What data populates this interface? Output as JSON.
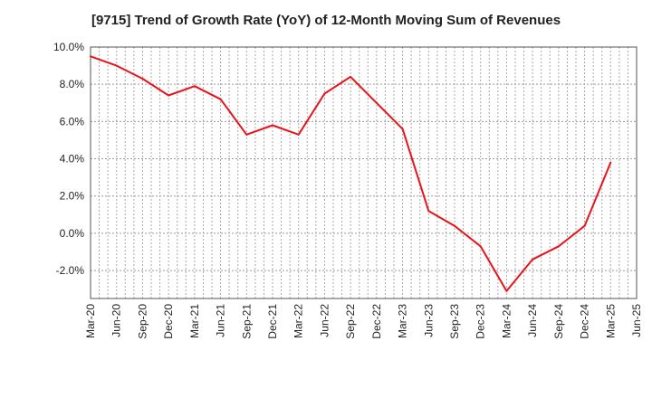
{
  "chart_data": {
    "type": "line",
    "title": "[9715]  Trend of Growth Rate (YoY) of 12-Month Moving Sum of Revenues",
    "xlabel": "",
    "ylabel": "",
    "ylim": [
      -3.5,
      10.0
    ],
    "y_ticks": [
      10.0,
      8.0,
      6.0,
      4.0,
      2.0,
      0.0,
      -2.0
    ],
    "y_tick_labels": [
      "10.0%",
      "8.0%",
      "6.0%",
      "4.0%",
      "2.0%",
      "0.0%",
      "-2.0%"
    ],
    "x_tick_labels": [
      "Mar-20",
      "Jun-20",
      "Sep-20",
      "Dec-20",
      "Mar-21",
      "Jun-21",
      "Sep-21",
      "Dec-21",
      "Mar-22",
      "Jun-22",
      "Sep-22",
      "Dec-22",
      "Mar-23",
      "Jun-23",
      "Sep-23",
      "Dec-23",
      "Mar-24",
      "Jun-24",
      "Sep-24",
      "Dec-24",
      "Mar-25",
      "Jun-25"
    ],
    "grid": true,
    "series": [
      {
        "color": "#e8141b",
        "x": [
          "Mar-20",
          "Jun-20",
          "Sep-20",
          "Dec-20",
          "Mar-21",
          "Jun-21",
          "Sep-21",
          "Dec-21",
          "Mar-22",
          "Jun-22",
          "Sep-22",
          "Dec-22",
          "Mar-23",
          "Jun-23",
          "Sep-23",
          "Dec-23",
          "Mar-24",
          "Jun-24",
          "Sep-24",
          "Dec-24",
          "Mar-25"
        ],
        "values": [
          9.5,
          9.0,
          8.3,
          7.4,
          7.9,
          7.2,
          5.3,
          5.8,
          5.3,
          7.5,
          8.4,
          7.0,
          5.6,
          1.2,
          0.4,
          -0.7,
          -3.1,
          -1.4,
          -0.7,
          0.4,
          3.8
        ]
      }
    ]
  }
}
